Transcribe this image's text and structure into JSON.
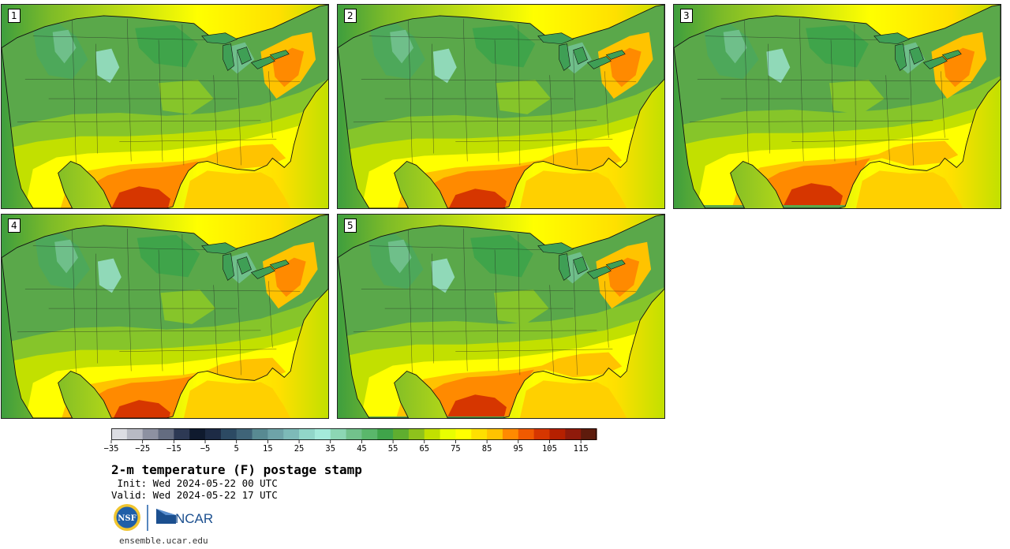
{
  "panels": [
    {
      "label": "1",
      "variant": 0
    },
    {
      "label": "2",
      "variant": 1
    },
    {
      "label": "3",
      "variant": 2
    },
    {
      "label": "4",
      "variant": 3
    },
    {
      "label": "5",
      "variant": 4
    }
  ],
  "colorbar": {
    "colors": [
      "#dcdde3",
      "#b8bac4",
      "#8d91a1",
      "#646c80",
      "#2d3954",
      "#0f1a2e",
      "#1d2b45",
      "#2c4a63",
      "#3f6478",
      "#588a92",
      "#6ea3a8",
      "#7dbab8",
      "#91d6c9",
      "#a4eadb",
      "#8cd7b4",
      "#72c28c",
      "#5ab76b",
      "#3fa44a",
      "#5fae2f",
      "#8ec21c",
      "#c2e000",
      "#e9ff00",
      "#ffff00",
      "#ffe000",
      "#ffc300",
      "#ff8a00",
      "#f05a00",
      "#d63600",
      "#b52000",
      "#8f1a0b",
      "#5e1b0c"
    ],
    "tick_values": [
      -35,
      -25,
      -15,
      -5,
      5,
      15,
      25,
      35,
      45,
      55,
      65,
      75,
      85,
      95,
      105,
      115
    ],
    "tick_labels": [
      "−35",
      "−25",
      "−15",
      "−5",
      "5",
      "15",
      "25",
      "35",
      "45",
      "55",
      "65",
      "75",
      "85",
      "95",
      "105",
      "115"
    ],
    "min": -35,
    "max": 120
  },
  "title": "2-m temperature (F) postage stamp",
  "init": " Init: Wed 2024-05-22 00 UTC",
  "valid": "Valid: Wed 2024-05-22 17 UTC",
  "logos": {
    "nsf": "NSF",
    "ncar": "NCAR"
  },
  "url": "ensemble.ucar.edu"
}
